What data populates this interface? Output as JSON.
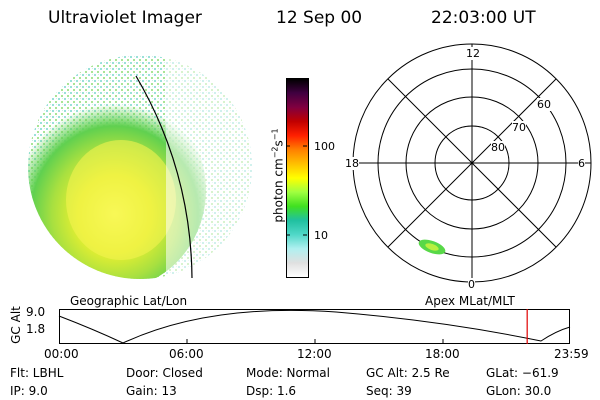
{
  "header": {
    "instrument": "Ultraviolet Imager",
    "date": "12 Sep 00",
    "time": "22:03:00 UT"
  },
  "colorbar": {
    "unit_main": "photon cm",
    "unit_sup1": "−2",
    "unit_mid": "s",
    "unit_sup2": "−1",
    "tick_high": "100",
    "tick_low": "10",
    "colors": [
      "#ffffff",
      "#e0e0e0",
      "#b0f0f0",
      "#50d8c8",
      "#20c0a0",
      "#40e020",
      "#a0ff40",
      "#ffff00",
      "#ffc000",
      "#ff8000",
      "#ff2000",
      "#c00000",
      "#800040",
      "#400040",
      "#000000"
    ]
  },
  "globe_panel": {
    "caption": "Geographic Lat/Lon"
  },
  "polar_panel": {
    "caption": "Apex MLat/MLT",
    "mlt_labels": {
      "top": "12",
      "left": "18",
      "right": "6",
      "bottom": "0"
    },
    "lat_labels": [
      "60",
      "70",
      "80"
    ]
  },
  "altitude_plot": {
    "ylabel": "GC Alt",
    "ytick_top": "9.0",
    "ytick_bottom": "1.8",
    "xticks": [
      "00:00",
      "06:00",
      "12:00",
      "18:00",
      "23:59"
    ],
    "marker_time_fraction": 0.918
  },
  "info": {
    "flt": "Flt: LBHL",
    "door": "Door: Closed",
    "mode": "Mode: Normal",
    "gc_alt": "GC Alt: 2.5 Re",
    "glat": "GLat: −61.9",
    "ip": "IP:  9.0",
    "gain": "Gain: 13",
    "dsp": "Dsp:    1.6",
    "seq": "Seq: 39",
    "glon": "GLon:  30.0"
  }
}
